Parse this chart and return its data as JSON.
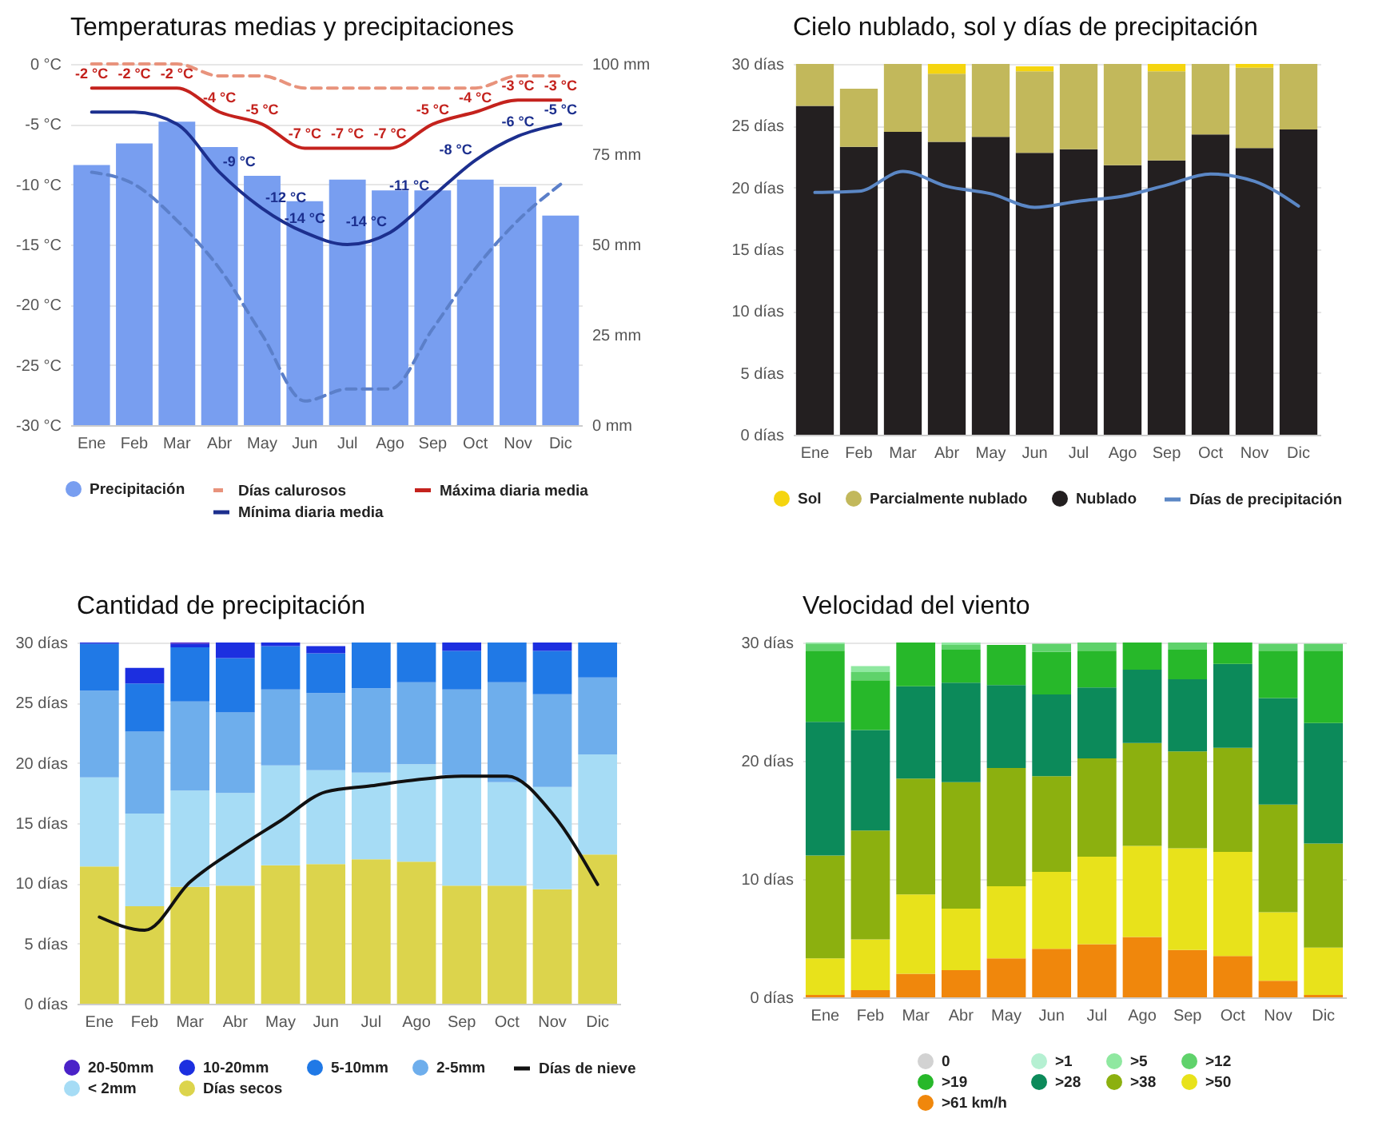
{
  "chart_data": [
    {
      "type": "bar",
      "title": "Temperaturas medias y precipitaciones",
      "categories": [
        "Ene",
        "Feb",
        "Mar",
        "Abr",
        "May",
        "Jun",
        "Jul",
        "Ago",
        "Sep",
        "Oct",
        "Nov",
        "Dic"
      ],
      "series": [
        {
          "name": "Precipitación",
          "axis": "y2",
          "color": "#789ef0",
          "values": [
            72,
            78,
            84,
            77,
            69,
            62,
            68,
            65,
            65,
            68,
            66,
            58
          ]
        },
        {
          "name": "Días calurosos",
          "type": "line",
          "line_style": "dashed",
          "color": "#e8937c",
          "values": [
            0,
            0,
            0,
            -1,
            -1,
            -2,
            -2,
            -2,
            -2,
            -2,
            -1,
            -1
          ]
        },
        {
          "name": "Máxima diaria media",
          "type": "line",
          "color": "#c4221d",
          "values": [
            -2,
            -2,
            -2,
            -4,
            -5,
            -7,
            -7,
            -7,
            -5,
            -4,
            -3,
            -3
          ],
          "value_labels": [
            "-2 °C",
            "-2 °C",
            "-2 °C",
            "-4 °C",
            "-5 °C",
            "-7 °C",
            "-7 °C",
            "-7 °C",
            "-5 °C",
            "-4 °C",
            "-3 °C",
            "-3 °C"
          ]
        },
        {
          "name": "Mínima diaria media",
          "type": "line",
          "color": "#1c2f8e",
          "values": [
            -4,
            -4,
            -5,
            -9,
            -12,
            -14,
            -15,
            -14,
            -11,
            -8,
            -6,
            -5
          ],
          "value_labels": [
            null,
            null,
            null,
            "-9 °C",
            "-12 °C",
            "-14 °C",
            null,
            "-14 °C",
            "-11 °C",
            "-8 °C",
            "-6 °C",
            "-5 °C"
          ]
        },
        {
          "type": "line",
          "line_style": "dashed",
          "color": "#5b7fc9",
          "values": [
            -9,
            -10,
            -13,
            -17,
            -22.5,
            -28,
            -27,
            -27,
            -22,
            -17,
            -13,
            -10
          ]
        }
      ],
      "ylim": [
        -30,
        0
      ],
      "yticks": [
        {
          "value": -30,
          "label": "-30 °C"
        },
        {
          "value": -25,
          "label": "-25 °C"
        },
        {
          "value": -20,
          "label": "-20 °C"
        },
        {
          "value": -15,
          "label": "-15 °C"
        },
        {
          "value": -10,
          "label": "-10 °C"
        },
        {
          "value": -5,
          "label": "-5 °C"
        },
        {
          "value": 0,
          "label": "0 °C"
        }
      ],
      "y2lim": [
        0,
        100
      ],
      "y2ticks": [
        {
          "value": 0,
          "label": "0 mm"
        },
        {
          "value": 25,
          "label": "25 mm"
        },
        {
          "value": 50,
          "label": "50 mm"
        },
        {
          "value": 75,
          "label": "75 mm"
        },
        {
          "value": 100,
          "label": "100 mm"
        }
      ],
      "grid": "y",
      "legend": "bottom"
    },
    {
      "type": "bar",
      "stacked": true,
      "title": "Cielo nublado, sol y días de precipitación",
      "categories": [
        "Ene",
        "Feb",
        "Mar",
        "Abr",
        "May",
        "Jun",
        "Jul",
        "Ago",
        "Sep",
        "Oct",
        "Nov",
        "Dic"
      ],
      "series": [
        {
          "name": "Nublado",
          "color": "#231f20",
          "values": [
            26.6,
            23.3,
            24.5,
            23.7,
            24.1,
            22.8,
            23.1,
            21.8,
            22.2,
            24.3,
            23.2,
            24.7
          ]
        },
        {
          "name": "Parcialmente nublado",
          "color": "#c2b85b",
          "values": [
            3.4,
            4.7,
            5.5,
            5.5,
            5.9,
            6.6,
            6.9,
            8.2,
            7.2,
            5.7,
            6.5,
            5.3
          ]
        },
        {
          "name": "Sol",
          "color": "#f5d50f",
          "values": [
            0,
            0,
            0,
            0.8,
            0,
            0.4,
            0,
            0,
            0.6,
            0,
            0.3,
            0
          ]
        },
        {
          "name": "Días de precipitación",
          "type": "line",
          "color": "#5b87c5",
          "values": [
            19.6,
            19.7,
            21.3,
            20.1,
            19.5,
            18.4,
            18.9,
            19.3,
            20.2,
            21.1,
            20.5,
            18.5
          ]
        }
      ],
      "ylim": [
        0,
        30
      ],
      "yticks": [
        {
          "value": 0,
          "label": "0 días"
        },
        {
          "value": 5,
          "label": "5 días"
        },
        {
          "value": 10,
          "label": "10 días"
        },
        {
          "value": 15,
          "label": "15 días"
        },
        {
          "value": 20,
          "label": "20 días"
        },
        {
          "value": 25,
          "label": "25 días"
        },
        {
          "value": 30,
          "label": "30 días"
        }
      ],
      "grid": "y",
      "legend": "bottom"
    },
    {
      "type": "bar",
      "stacked": true,
      "title": "Cantidad de precipitación",
      "categories": [
        "Ene",
        "Feb",
        "Mar",
        "Abr",
        "May",
        "Jun",
        "Jul",
        "Ago",
        "Sep",
        "Oct",
        "Nov",
        "Dic"
      ],
      "series": [
        {
          "name": "Días secos",
          "color": "#dcd44c",
          "values": [
            11.4,
            8.1,
            9.7,
            9.8,
            11.5,
            11.6,
            12.0,
            11.8,
            9.8,
            9.8,
            9.5,
            12.4
          ]
        },
        {
          "name": "< 2mm",
          "color": "#a6dcf5",
          "values": [
            7.4,
            7.7,
            8.0,
            7.7,
            8.3,
            7.8,
            7.2,
            8.1,
            9.2,
            8.6,
            8.5,
            8.3
          ]
        },
        {
          "name": "2-5mm",
          "color": "#6eaeec",
          "values": [
            7.2,
            6.8,
            7.4,
            6.7,
            6.3,
            6.4,
            7.0,
            6.8,
            7.1,
            8.3,
            7.7,
            6.4
          ]
        },
        {
          "name": "5-10mm",
          "color": "#2079e6",
          "values": [
            3.9,
            4.0,
            4.5,
            4.5,
            3.6,
            3.3,
            3.8,
            3.3,
            3.2,
            3.3,
            3.6,
            2.9
          ]
        },
        {
          "name": "10-20mm",
          "color": "#1c2fe0",
          "values": [
            0.1,
            1.3,
            0.3,
            1.3,
            0.3,
            0.6,
            0,
            0,
            0.7,
            0,
            0.7,
            0
          ]
        },
        {
          "name": "20-50mm",
          "color": "#4a22c8",
          "values": [
            0,
            0,
            0.1,
            0,
            0,
            0,
            0,
            0,
            0,
            0,
            0,
            0
          ]
        },
        {
          "name": "Días de nieve",
          "type": "line",
          "color": "#111111",
          "values": [
            7.2,
            6.1,
            10.1,
            12.8,
            15.2,
            17.6,
            18.1,
            18.6,
            18.9,
            18.9,
            15.8,
            9.9
          ]
        }
      ],
      "ylim": [
        0,
        30
      ],
      "yticks": [
        {
          "value": 0,
          "label": "0 días"
        },
        {
          "value": 5,
          "label": "5 días"
        },
        {
          "value": 10,
          "label": "10 días"
        },
        {
          "value": 15,
          "label": "15 días"
        },
        {
          "value": 20,
          "label": "20 días"
        },
        {
          "value": 25,
          "label": "25 días"
        },
        {
          "value": 30,
          "label": "30 días"
        }
      ],
      "grid": "y",
      "legend": "bottom"
    },
    {
      "type": "bar",
      "stacked": true,
      "title": "Velocidad del viento",
      "categories": [
        "Ene",
        "Feb",
        "Mar",
        "Abr",
        "May",
        "Jun",
        "Jul",
        "Ago",
        "Sep",
        "Oct",
        "Nov",
        "Dic"
      ],
      "series": [
        {
          "name": ">61 km/h",
          "color": "#f0870c",
          "values": [
            0.2,
            0.6,
            2.0,
            2.3,
            3.3,
            4.1,
            4.5,
            5.1,
            4.0,
            3.5,
            1.4,
            0.2
          ]
        },
        {
          "name": ">50",
          "color": "#e8e21b",
          "values": [
            3.1,
            4.3,
            6.7,
            5.2,
            6.1,
            6.5,
            7.4,
            7.7,
            8.6,
            8.8,
            5.8,
            4.0
          ]
        },
        {
          "name": ">38",
          "color": "#8cb00f",
          "values": [
            8.7,
            9.2,
            9.8,
            10.7,
            10.0,
            8.1,
            8.3,
            8.7,
            8.2,
            8.8,
            9.1,
            8.8
          ]
        },
        {
          "name": ">28",
          "color": "#0c8a5a",
          "values": [
            11.3,
            8.5,
            7.8,
            8.4,
            7.0,
            6.9,
            6.0,
            6.2,
            6.1,
            7.1,
            9.0,
            10.2
          ]
        },
        {
          "name": ">19",
          "color": "#27b82a",
          "values": [
            6.0,
            4.2,
            3.7,
            2.8,
            3.4,
            3.6,
            3.1,
            2.3,
            2.5,
            1.8,
            4.0,
            6.1
          ]
        },
        {
          "name": ">12",
          "color": "#5fd26b",
          "values": [
            0.6,
            0.7,
            0,
            0.4,
            0,
            0.7,
            0.7,
            0,
            0.6,
            0,
            0.6,
            0.6
          ]
        },
        {
          "name": ">5",
          "color": "#8fe8a0",
          "values": [
            0.1,
            0.5,
            0,
            0.2,
            0,
            0,
            0,
            0,
            0,
            0,
            0,
            0
          ]
        },
        {
          "name": ">1",
          "color": "#b5f0d2",
          "values": [
            0,
            0,
            0,
            0,
            0,
            0,
            0,
            0,
            0,
            0,
            0,
            0
          ]
        },
        {
          "name": "0",
          "color": "#d2d2d2",
          "values": [
            0,
            0,
            0,
            0,
            0,
            0,
            0,
            0,
            0,
            0,
            0,
            0
          ]
        }
      ],
      "ylim": [
        0,
        30
      ],
      "yticks": [
        {
          "value": 0,
          "label": "0 días"
        },
        {
          "value": 10,
          "label": "10 días"
        },
        {
          "value": 20,
          "label": "20 días"
        },
        {
          "value": 30,
          "label": "30 días"
        }
      ],
      "grid": "y",
      "legend": "bottom"
    }
  ]
}
